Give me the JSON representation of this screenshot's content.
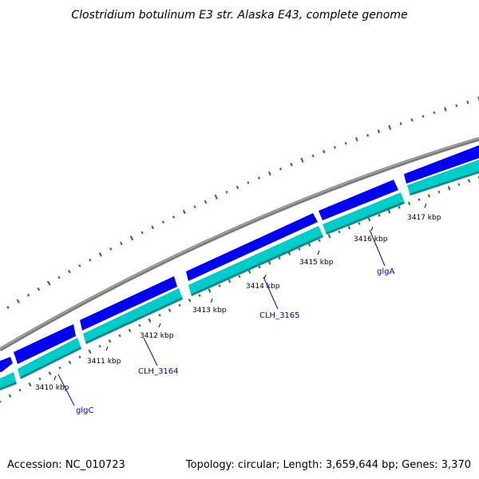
{
  "title": "Clostridium botulinum E3 str. Alaska E43, complete genome",
  "accession": "Accession: NC_010723",
  "summary": "Topology: circular; Length: 3,659,644 bp; Genes: 3,370",
  "colors": {
    "backbone": "#7a7a7a",
    "forward_gene": "#0000ee",
    "forward_gene_highlight": "#3a3aff",
    "reverse_gene": "#00cccc",
    "reverse_gene_shade": "#008a8a",
    "gc_ticks": "#1a7a1a",
    "label_line": "#0000c8",
    "label_text": "#0000c8"
  },
  "scale_ticks": [
    {
      "label": "3410 kbp"
    },
    {
      "label": "3411 kbp"
    },
    {
      "label": "3412 kbp"
    },
    {
      "label": "3413 kbp"
    },
    {
      "label": "3414 kbp"
    },
    {
      "label": "3415 kbp"
    },
    {
      "label": "3416 kbp"
    },
    {
      "label": "3417 kbp"
    }
  ],
  "gene_labels": [
    {
      "name": "glgC"
    },
    {
      "name": "CLH_3164"
    },
    {
      "name": "CLH_3165"
    },
    {
      "name": "glgA"
    }
  ]
}
